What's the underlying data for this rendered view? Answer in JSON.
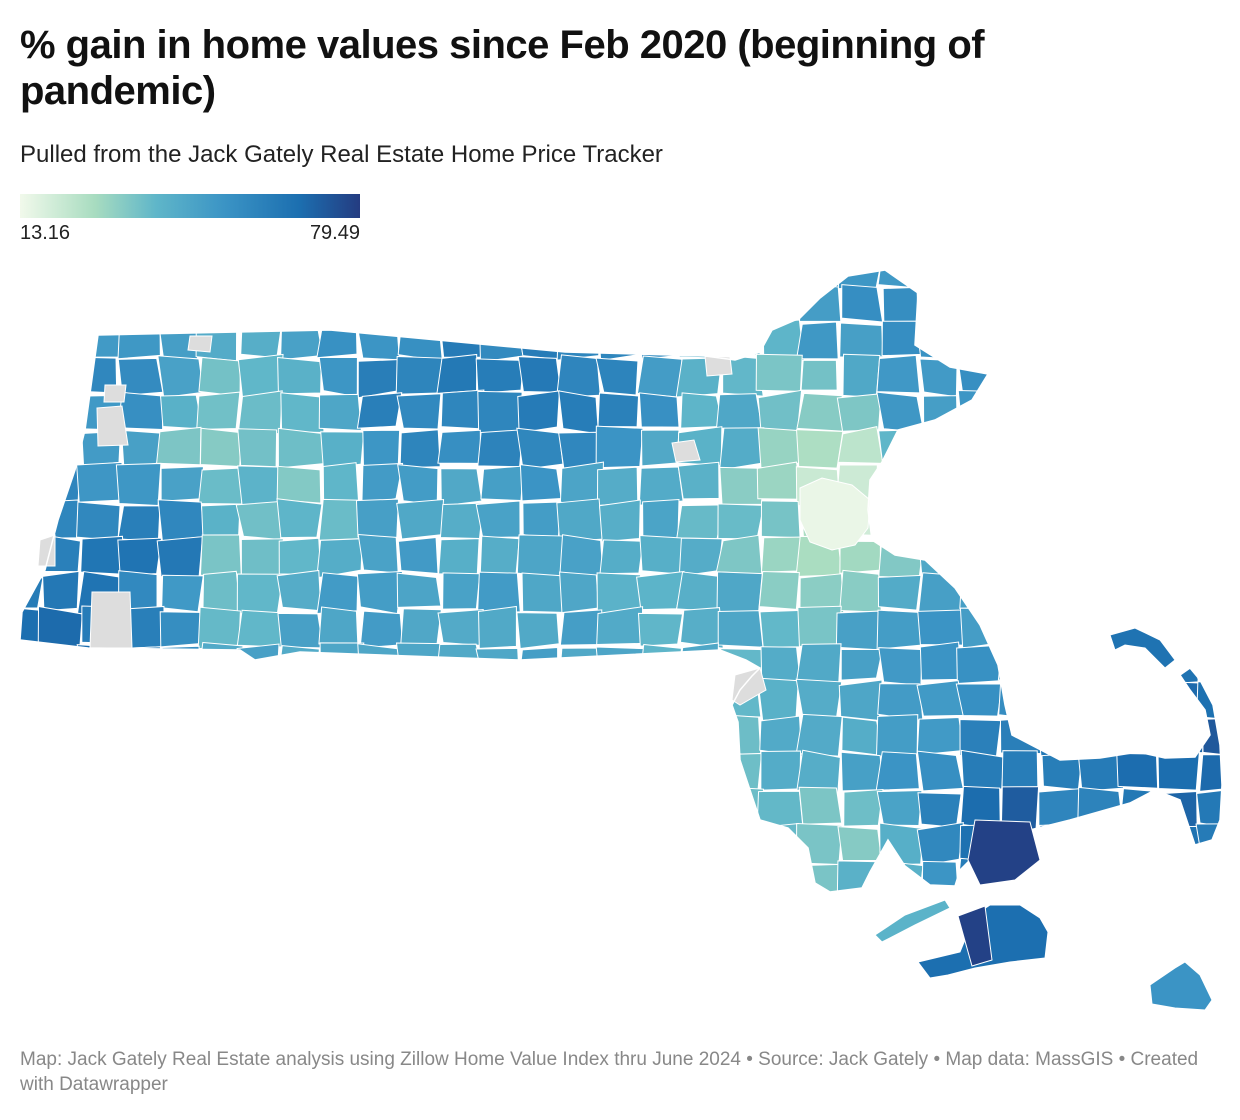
{
  "header": {
    "title": "% gain in home values since Feb 2020 (beginning of pandemic)",
    "subtitle": "Pulled from the Jack Gately Real Estate Home Price Tracker"
  },
  "legend": {
    "min_label": "13.16",
    "max_label": "79.49",
    "min_value": 13.16,
    "max_value": 79.49,
    "colors": [
      "#f1f9eb",
      "#a8dcc0",
      "#5fb6c9",
      "#3b94c5",
      "#1c6fb0",
      "#243c81"
    ]
  },
  "map": {
    "region": "Massachusetts towns choropleth",
    "no_data_color": "#dddddd",
    "boundary_color": "#ffffff",
    "regions_shown": [
      {
        "name": "Berkshires (west)",
        "level": 0.65
      },
      {
        "name": "Pioneer Valley (central-west)",
        "level": 0.35
      },
      {
        "name": "Worcester County (central)",
        "level": 0.45
      },
      {
        "name": "Greater Boston inner core",
        "level": 0.03
      },
      {
        "name": "Boston suburbs",
        "level": 0.2
      },
      {
        "name": "North Shore",
        "level": 0.55
      },
      {
        "name": "Merrimack Valley (northeast)",
        "level": 0.55
      },
      {
        "name": "South Shore",
        "level": 0.55
      },
      {
        "name": "South Coast / Bristol County",
        "level": 0.4
      },
      {
        "name": "Cape Cod",
        "level": 0.75
      },
      {
        "name": "Martha's Vineyard",
        "level": 0.85
      },
      {
        "name": "Nantucket",
        "level": 0.55
      }
    ]
  },
  "footer": {
    "text": "Map: Jack Gately Real Estate analysis using Zillow Home Value Index thru June 2024 • Source: Jack Gately • Map data: MassGIS • Created with Datawrapper"
  }
}
